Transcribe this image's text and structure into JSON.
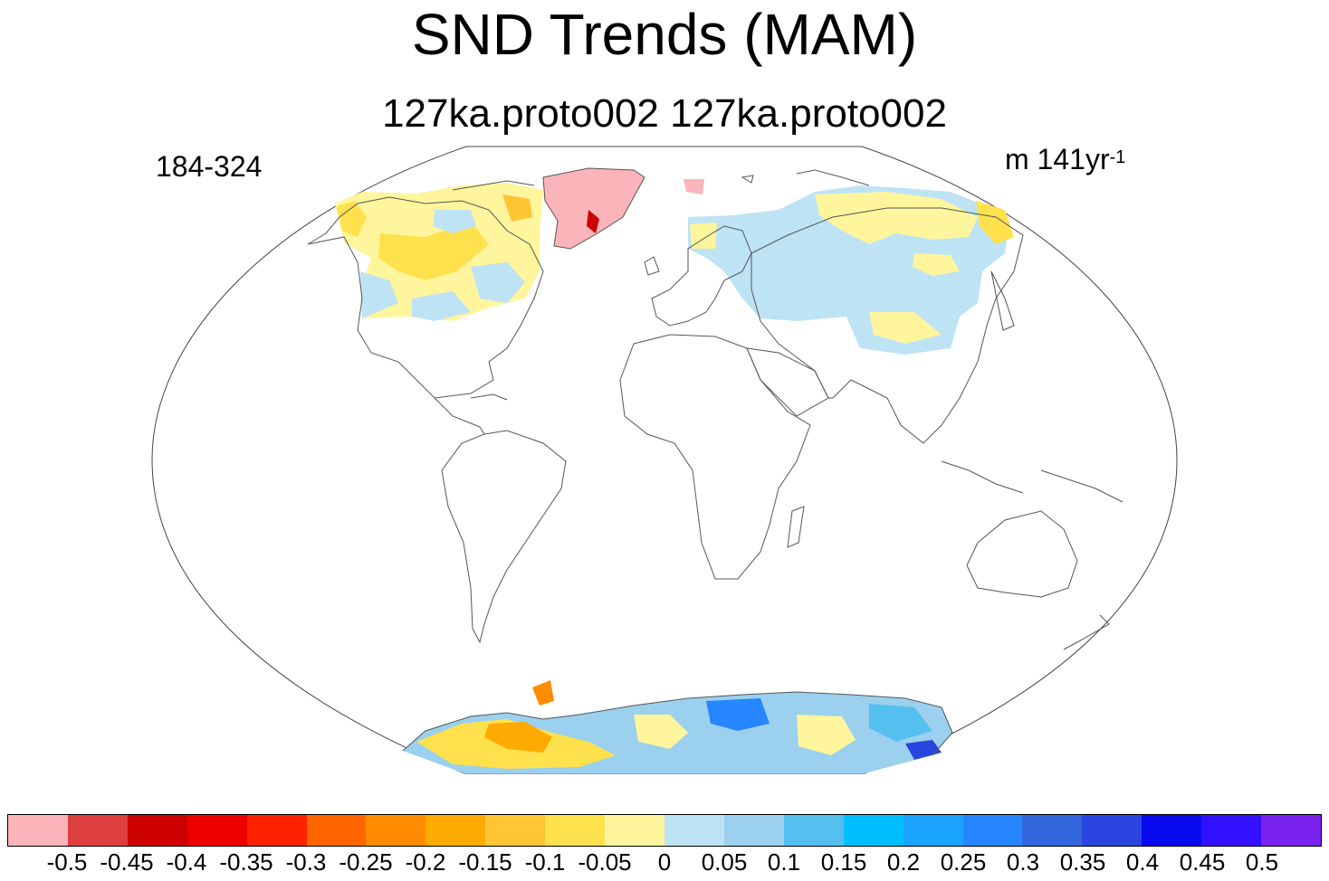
{
  "title": "SND Trends (MAM)",
  "subtitle": "127ka.proto002  127ka.proto002",
  "left_label": "184-324",
  "right_label": {
    "text": "m 141yr",
    "sup": "-1"
  },
  "colorbar": {
    "colors": [
      "#fbb4b9",
      "#de4040",
      "#cc0000",
      "#ee0000",
      "#ff2200",
      "#ff6600",
      "#ff8c00",
      "#ffaa00",
      "#ffc533",
      "#ffe14d",
      "#fff59d",
      "#bde3f5",
      "#9bd0ee",
      "#55bff0",
      "#00bfff",
      "#1aa3ff",
      "#2686ff",
      "#3366dd",
      "#2a45e0",
      "#0a0aee",
      "#3310ff",
      "#7a22ee"
    ],
    "labels": [
      "-0.5",
      "-0.45",
      "-0.4",
      "-0.35",
      "-0.3",
      "-0.25",
      "-0.2",
      "-0.15",
      "-0.1",
      "-0.05",
      "0",
      "0.05",
      "0.1",
      "0.15",
      "0.2",
      "0.25",
      "0.3",
      "0.35",
      "0.4",
      "0.45",
      "0.5"
    ]
  }
}
